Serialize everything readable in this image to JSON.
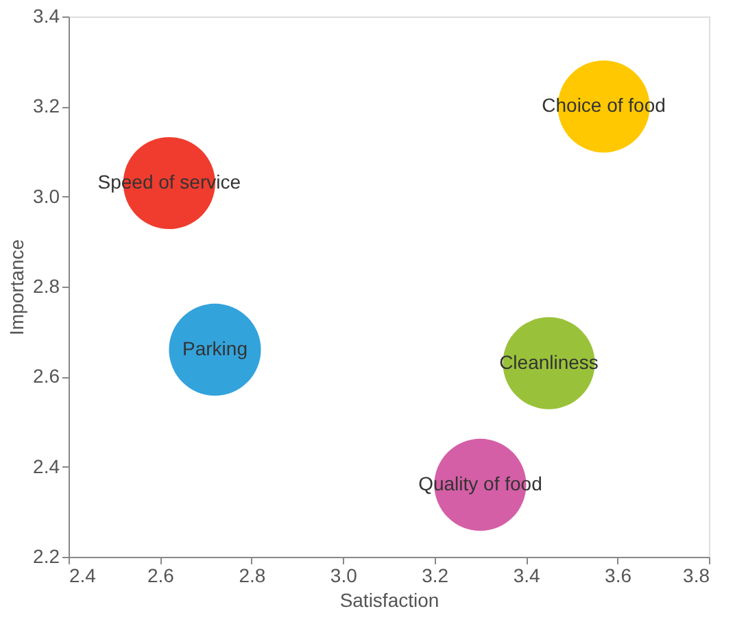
{
  "chart_data": {
    "type": "bubble",
    "xlabel": "Satisfaction",
    "ylabel": "Importance",
    "xlim": [
      2.4,
      3.8
    ],
    "ylim": [
      2.2,
      3.4
    ],
    "xticks": [
      {
        "value": 2.4,
        "label": "2.4"
      },
      {
        "value": 2.6,
        "label": "2.6"
      },
      {
        "value": 2.8,
        "label": "2.8"
      },
      {
        "value": 3.0,
        "label": "3.0"
      },
      {
        "value": 3.2,
        "label": "3.2"
      },
      {
        "value": 3.4,
        "label": "3.4"
      },
      {
        "value": 3.6,
        "label": "3.6"
      },
      {
        "value": 3.8,
        "label": "3.8"
      }
    ],
    "yticks": [
      {
        "value": 2.2,
        "label": "2.2"
      },
      {
        "value": 2.4,
        "label": "2.4"
      },
      {
        "value": 2.6,
        "label": "2.6"
      },
      {
        "value": 2.8,
        "label": "2.8"
      },
      {
        "value": 3.0,
        "label": "3.0"
      },
      {
        "value": 3.2,
        "label": "3.2"
      },
      {
        "value": 3.4,
        "label": "3.4"
      }
    ],
    "grid": false,
    "legend": false,
    "series": [
      {
        "name": "Speed of service",
        "color": "#f03c2e",
        "x": [
          2.62
        ],
        "values": [
          3.03
        ],
        "sizes": [
          1
        ]
      },
      {
        "name": "Choice of food",
        "color": "#ffc800",
        "x": [
          3.57
        ],
        "values": [
          3.2
        ],
        "sizes": [
          1
        ]
      },
      {
        "name": "Parking",
        "color": "#33a3dc",
        "x": [
          2.72
        ],
        "values": [
          2.66
        ],
        "sizes": [
          1
        ]
      },
      {
        "name": "Cleanliness",
        "color": "#99c23a",
        "x": [
          3.45
        ],
        "values": [
          2.63
        ],
        "sizes": [
          1
        ]
      },
      {
        "name": "Quality of food",
        "color": "#d45fa6",
        "x": [
          3.3
        ],
        "values": [
          2.36
        ],
        "sizes": [
          1
        ]
      }
    ]
  }
}
